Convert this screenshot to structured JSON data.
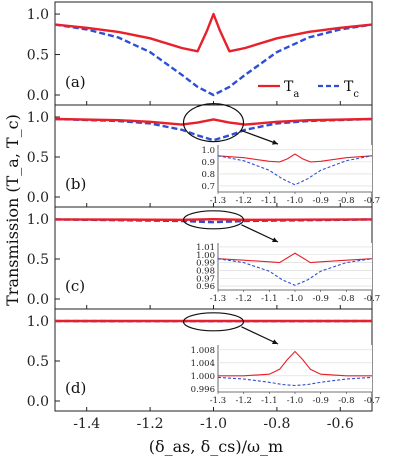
{
  "chart_data": {
    "type": "line",
    "xlabel": "(δ_as, δ_cs)/ω_m",
    "ylabel": "Transmission (T_a, T_c)",
    "xlim": [
      -1.5,
      -0.5
    ],
    "xticks": [
      "-1.4",
      "-1.2",
      "-1.0",
      "-0.8",
      "-0.6"
    ],
    "legend": {
      "position": "bottom-right of panel (a)",
      "entries": [
        "T_a",
        "T_c"
      ]
    },
    "colors": {
      "T_a": "#e8202a",
      "T_c": "#2d4fd6"
    },
    "panels": [
      {
        "label": "(a)",
        "ylim": [
          0,
          1.05
        ],
        "yticks": [
          "0.0",
          "0.5",
          "1.0"
        ],
        "series": [
          {
            "name": "T_a",
            "x": [
              -1.5,
              -1.4,
              -1.3,
              -1.2,
              -1.1,
              -1.05,
              -1.02,
              -1.0,
              -0.98,
              -0.95,
              -0.9,
              -0.8,
              -0.7,
              -0.6,
              -0.5
            ],
            "y": [
              0.87,
              0.83,
              0.78,
              0.7,
              0.58,
              0.54,
              0.8,
              1.0,
              0.8,
              0.54,
              0.58,
              0.7,
              0.78,
              0.83,
              0.87
            ]
          },
          {
            "name": "T_c",
            "x": [
              -1.5,
              -1.4,
              -1.3,
              -1.2,
              -1.1,
              -1.05,
              -1.0,
              -0.95,
              -0.9,
              -0.8,
              -0.7,
              -0.6,
              -0.5
            ],
            "y": [
              0.87,
              0.81,
              0.71,
              0.53,
              0.25,
              0.1,
              0.0,
              0.1,
              0.25,
              0.53,
              0.71,
              0.81,
              0.87
            ]
          }
        ]
      },
      {
        "label": "(b)",
        "ylim": [
          0,
          1.05
        ],
        "yticks": [
          "0.0",
          "0.5",
          "1.0"
        ],
        "series": [
          {
            "name": "T_a",
            "x": [
              -1.5,
              -1.3,
              -1.2,
              -1.1,
              -1.05,
              -1.0,
              -0.95,
              -0.9,
              -0.8,
              -0.7,
              -0.5
            ],
            "y": [
              0.975,
              0.96,
              0.94,
              0.905,
              0.93,
              0.97,
              0.93,
              0.905,
              0.94,
              0.96,
              0.975
            ]
          },
          {
            "name": "T_c",
            "x": [
              -1.5,
              -1.3,
              -1.2,
              -1.1,
              -1.05,
              -1.0,
              -0.95,
              -0.9,
              -0.8,
              -0.7,
              -0.5
            ],
            "y": [
              0.975,
              0.95,
              0.92,
              0.84,
              0.77,
              0.71,
              0.77,
              0.84,
              0.92,
              0.95,
              0.975
            ]
          }
        ],
        "inset": {
          "xlim": [
            -1.3,
            -0.7
          ],
          "ylim": [
            0.65,
            1.04
          ],
          "xticks": [
            "-1.3",
            "-1.2",
            "-1.1",
            "-1.0",
            "-0.9",
            "-0.8",
            "-0.7"
          ],
          "yticks": [
            "1.0",
            "0.9",
            "0.8",
            "0.7"
          ],
          "series": [
            {
              "name": "T_a",
              "x": [
                -1.3,
                -1.2,
                -1.1,
                -1.06,
                -1.03,
                -1.0,
                -0.97,
                -0.94,
                -0.9,
                -0.8,
                -0.7
              ],
              "y": [
                0.95,
                0.935,
                0.905,
                0.9,
                0.925,
                0.965,
                0.925,
                0.9,
                0.905,
                0.935,
                0.95
              ]
            },
            {
              "name": "T_c",
              "x": [
                -1.3,
                -1.2,
                -1.1,
                -1.05,
                -1.0,
                -0.95,
                -0.9,
                -0.8,
                -0.7
              ],
              "y": [
                0.95,
                0.91,
                0.83,
                0.76,
                0.71,
                0.76,
                0.83,
                0.91,
                0.95
              ]
            }
          ]
        }
      },
      {
        "label": "(c)",
        "ylim": [
          0,
          1.05
        ],
        "yticks": [
          "0.0",
          "0.5",
          "1.0"
        ],
        "series": [
          {
            "name": "T_a",
            "x": [
              -1.5,
              -1.1,
              -1.0,
              -0.9,
              -0.5
            ],
            "y": [
              0.995,
              0.99,
              0.998,
              0.99,
              0.995
            ]
          },
          {
            "name": "T_c",
            "x": [
              -1.5,
              -1.1,
              -1.0,
              -0.9,
              -0.5
            ],
            "y": [
              0.995,
              0.975,
              0.96,
              0.975,
              0.995
            ]
          }
        ],
        "inset": {
          "xlim": [
            -1.3,
            -0.7
          ],
          "ylim": [
            0.955,
            1.015
          ],
          "xticks": [
            "-1.3",
            "-1.2",
            "-1.1",
            "-1.0",
            "-0.9",
            "-0.8",
            "-0.7"
          ],
          "yticks": [
            "1.01",
            "1.00",
            "0.99",
            "0.98",
            "0.97",
            "0.96"
          ],
          "series": [
            {
              "name": "T_a",
              "x": [
                -1.3,
                -1.2,
                -1.1,
                -1.06,
                -1.03,
                -1.0,
                -0.97,
                -0.94,
                -0.9,
                -0.8,
                -0.7
              ],
              "y": [
                0.995,
                0.993,
                0.991,
                0.99,
                0.996,
                1.002,
                0.996,
                0.99,
                0.991,
                0.993,
                0.995
              ]
            },
            {
              "name": "T_c",
              "x": [
                -1.3,
                -1.2,
                -1.1,
                -1.05,
                -1.0,
                -0.95,
                -0.9,
                -0.8,
                -0.7
              ],
              "y": [
                0.995,
                0.99,
                0.979,
                0.968,
                0.961,
                0.968,
                0.979,
                0.99,
                0.995
              ]
            }
          ]
        }
      },
      {
        "label": "(d)",
        "ylim": [
          0,
          1.05
        ],
        "yticks": [
          "0.0",
          "0.5",
          "1.0"
        ],
        "series": [
          {
            "name": "T_a",
            "x": [
              -1.5,
              -1.0,
              -0.5
            ],
            "y": [
              1.0,
              1.0,
              1.0
            ]
          },
          {
            "name": "T_c",
            "x": [
              -1.5,
              -1.0,
              -0.5
            ],
            "y": [
              0.999,
              0.997,
              0.999
            ]
          }
        ],
        "inset": {
          "xlim": [
            -1.3,
            -0.7
          ],
          "ylim": [
            0.995,
            1.0095
          ],
          "xticks": [
            "-1.3",
            "-1.2",
            "-1.1",
            "-1.0",
            "-0.9",
            "-0.8",
            "-0.7"
          ],
          "yticks": [
            "1.008",
            "1.004",
            "1.000",
            "0.996"
          ],
          "series": [
            {
              "name": "T_a",
              "x": [
                -1.3,
                -1.2,
                -1.1,
                -1.06,
                -1.03,
                -1.0,
                -0.97,
                -0.94,
                -0.9,
                -0.8,
                -0.7
              ],
              "y": [
                1.0,
                1.0,
                1.0005,
                1.002,
                1.005,
                1.0075,
                1.005,
                1.002,
                1.0005,
                1.0,
                1.0
              ]
            },
            {
              "name": "T_c",
              "x": [
                -1.3,
                -1.2,
                -1.1,
                -1.05,
                -1.0,
                -0.95,
                -0.9,
                -0.8,
                -0.7
              ],
              "y": [
                0.9995,
                0.999,
                0.998,
                0.9973,
                0.997,
                0.9973,
                0.998,
                0.999,
                0.9995
              ]
            }
          ]
        }
      }
    ]
  }
}
